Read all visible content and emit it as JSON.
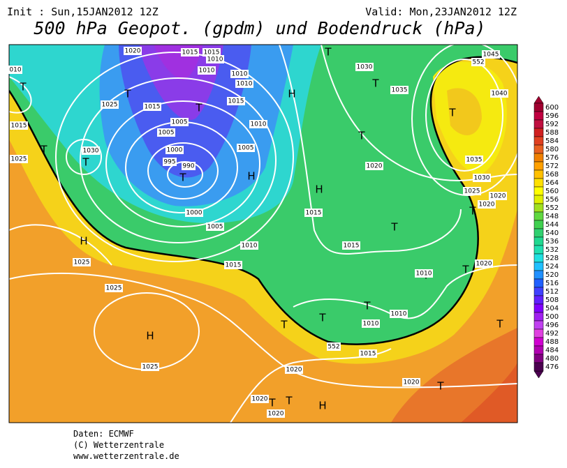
{
  "header": {
    "init": "Init : Sun,15JAN2012 12Z",
    "valid": "Valid: Mon,23JAN2012 12Z",
    "title": "500 hPa Geopot. (gpdm) und Bodendruck (hPa)"
  },
  "colorbar": {
    "values": [
      600,
      596,
      592,
      588,
      584,
      580,
      576,
      572,
      568,
      564,
      560,
      556,
      552,
      548,
      544,
      540,
      536,
      532,
      528,
      524,
      520,
      516,
      512,
      508,
      504,
      500,
      496,
      492,
      488,
      484,
      480,
      476
    ],
    "colors": [
      "#a00030",
      "#c00040",
      "#c01040",
      "#d02020",
      "#e04020",
      "#e86020",
      "#f08000",
      "#ffa000",
      "#ffc000",
      "#ffe000",
      "#ffff00",
      "#e0f000",
      "#a0e020",
      "#60d840",
      "#40d050",
      "#30d070",
      "#20d890",
      "#20e0b0",
      "#20e0e0",
      "#20c0ff",
      "#2090ff",
      "#2060ff",
      "#4040ff",
      "#6020ff",
      "#8000ff",
      "#a020f0",
      "#c040f0",
      "#e040e0",
      "#d000d0",
      "#b000b0",
      "#800080",
      "#4b0050"
    ]
  },
  "map": {
    "labels": [
      "1020",
      "1015",
      "1015",
      "1010",
      "1010",
      "010",
      "T",
      "T",
      "1025",
      "1015",
      "1015",
      "1005",
      "1005",
      "T",
      "1015",
      "1010",
      "1010",
      "1010",
      "1005",
      "1000",
      "995",
      "990",
      "T",
      "H",
      "1030",
      "T",
      "T",
      "1025",
      "1000",
      "1005",
      "1010",
      "1015",
      "H",
      "1025",
      "1025",
      "H",
      "1025",
      "T",
      "1030",
      "T",
      "1035",
      "H",
      "T",
      "1020",
      "H",
      "1015",
      "T",
      "1015",
      "T",
      "1045",
      "1040",
      "1035",
      "1030",
      "1025",
      "1020",
      "1020",
      "T",
      "1020",
      "T",
      "T",
      "1010",
      "T",
      "1010",
      "1010",
      "T",
      "T",
      "1015",
      "T",
      "T",
      "1020",
      "1020",
      "T",
      "1020",
      "T",
      "1020",
      "H",
      "552",
      "552"
    ]
  },
  "footer": [
    "Daten: ECMWF",
    "(C) Wetterzentrale",
    "www.wetterzentrale.de"
  ]
}
